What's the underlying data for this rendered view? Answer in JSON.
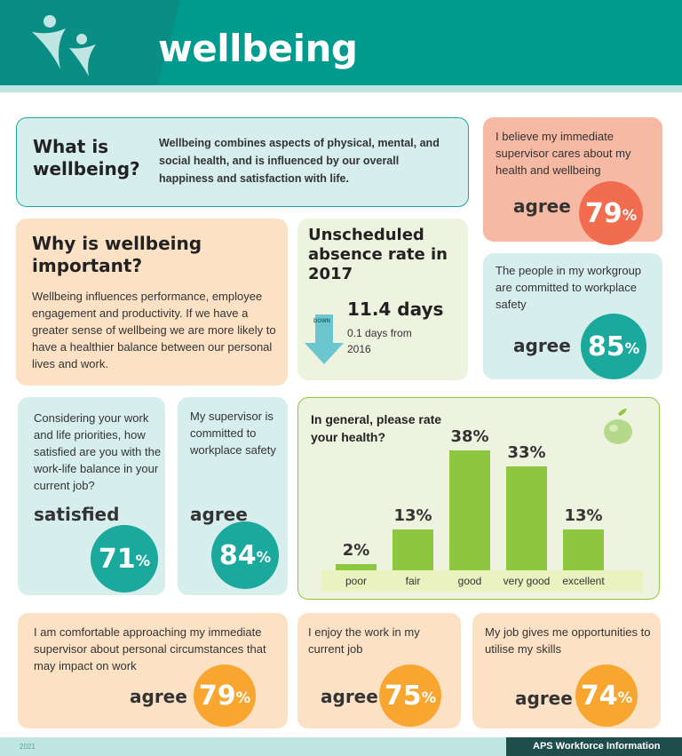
{
  "header": {
    "title": "wellbeing"
  },
  "what_is": {
    "heading": "What is wellbeing?",
    "text": "Wellbeing combines aspects of physical, mental, and social health, and is influenced by our overall happiness and satisfaction with life."
  },
  "why": {
    "heading": "Why is wellbeing important?",
    "text": "Wellbeing influences performance, employee engagement and productivity. If we have a greater sense of wellbeing we are more likely to have a healthier balance between our personal lives and work."
  },
  "absence": {
    "heading": "Unscheduled absence rate in 2017",
    "days": "11.4 days",
    "arrow_label": "DOWN",
    "change": "0.1 days from 2016"
  },
  "stats": {
    "supervisor_cares": {
      "text": "I believe my immediate supervisor cares about my health and wellbeing",
      "label": "agree",
      "value": "79",
      "unit": "%"
    },
    "workgroup_safety": {
      "text": "The people in my workgroup are committed to workplace safety",
      "label": "agree",
      "value": "85",
      "unit": "%"
    },
    "work_life": {
      "text": "Considering your work and life priorities, how satisfied are you with the work-life balance in your current job?",
      "label": "satisfied",
      "value": "71",
      "unit": "%"
    },
    "supervisor_safety": {
      "text": "My supervisor is committed to workplace safety",
      "label": "agree",
      "value": "84",
      "unit": "%"
    },
    "approach_supervisor": {
      "text": "I am comfortable approaching my immediate supervisor about personal circumstances that may impact on work",
      "label": "agree",
      "value": "79",
      "unit": "%"
    },
    "enjoy_work": {
      "text": "I enjoy the work in my current job",
      "label": "agree",
      "value": "75",
      "unit": "%"
    },
    "utilise_skills": {
      "text": "My job gives me opportunities to utilise my skills",
      "label": "agree",
      "value": "74",
      "unit": "%"
    }
  },
  "colors": {
    "teal": "#1aa99c",
    "orange_red": "#f26d4f",
    "amber": "#f9a631",
    "green": "#8dc63f"
  },
  "chart_data": {
    "type": "bar",
    "title": "In general, please rate your health?",
    "categories": [
      "poor",
      "fair",
      "good",
      "very good",
      "excellent"
    ],
    "values": [
      2,
      13,
      38,
      33,
      13
    ],
    "value_labels": [
      "2%",
      "13%",
      "38%",
      "33%",
      "13%"
    ],
    "ylim": [
      0,
      40
    ]
  },
  "footer": {
    "source": "APS Workforce Information",
    "year": "2021"
  }
}
